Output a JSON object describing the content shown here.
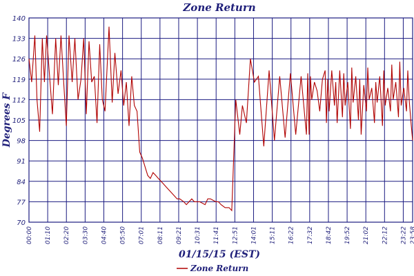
{
  "chart_data": {
    "type": "line",
    "title": "Zone Return",
    "xlabel": "01/15/15 (EST)",
    "ylabel": "Degrees F",
    "ylim": [
      70,
      140
    ],
    "yticks": [
      70,
      77,
      84,
      91,
      98,
      105,
      112,
      119,
      126,
      133,
      140
    ],
    "xticks": [
      "00:00",
      "01:10",
      "02:20",
      "03:30",
      "04:40",
      "05:50",
      "07:01",
      "08:11",
      "09:21",
      "10:31",
      "11:41",
      "12:51",
      "14:01",
      "15:11",
      "16:22",
      "17:32",
      "18:42",
      "19:52",
      "21:02",
      "22:12",
      "23:22",
      "23:58"
    ],
    "xlim_minutes": [
      0,
      1438
    ],
    "grid": true,
    "legend": {
      "position": "bottom-center"
    },
    "colors": {
      "series": "#b00000",
      "grid": "#1a1a80",
      "axis_text": "#1f1f7a"
    },
    "series": [
      {
        "name": "Zone Return",
        "x_minutes": [
          0,
          10,
          22,
          30,
          40,
          50,
          58,
          66,
          78,
          88,
          100,
          110,
          120,
          130,
          140,
          150,
          162,
          172,
          184,
          195,
          205,
          215,
          225,
          235,
          245,
          255,
          265,
          275,
          285,
          300,
          312,
          322,
          334,
          345,
          355,
          365,
          375,
          385,
          395,
          405,
          415,
          425,
          435,
          445,
          455,
          465,
          475,
          485,
          495,
          505,
          515,
          525,
          535,
          545,
          555,
          565,
          580,
          590,
          600,
          610,
          620,
          630,
          640,
          660,
          670,
          680,
          700,
          710,
          720,
          735,
          750,
          760,
          775,
          790,
          800,
          815,
          830,
          845,
          860,
          880,
          900,
          920,
          940,
          960,
          980,
          1000,
          1020,
          1040,
          1045,
          1050,
          1055,
          1060,
          1070,
          1080,
          1090,
          1100,
          1110,
          1115,
          1120,
          1125,
          1135,
          1145,
          1150,
          1155,
          1165,
          1175,
          1180,
          1185,
          1195,
          1205,
          1210,
          1215,
          1225,
          1235,
          1240,
          1245,
          1255,
          1265,
          1270,
          1275,
          1285,
          1295,
          1300,
          1305,
          1315,
          1325,
          1330,
          1335,
          1345,
          1355,
          1360,
          1365,
          1375,
          1385,
          1390,
          1395,
          1405,
          1415,
          1420,
          1425,
          1432,
          1438
        ],
        "values": [
          126,
          118,
          134,
          112,
          101,
          133,
          118,
          134,
          119,
          107,
          133,
          117,
          134,
          118,
          103,
          134,
          118,
          133,
          112,
          119,
          133,
          107,
          132,
          118,
          120,
          104,
          131,
          112,
          108,
          137,
          111,
          128,
          114,
          122,
          110,
          118,
          103,
          120,
          110,
          108,
          94,
          92,
          89,
          86,
          85,
          87,
          86,
          85,
          84,
          83,
          82,
          81,
          80,
          79,
          78,
          78,
          77,
          76,
          77,
          78,
          77,
          77,
          77,
          76,
          78,
          78,
          77,
          77,
          76,
          75,
          75,
          74,
          112,
          100,
          110,
          104,
          126,
          118,
          120,
          96,
          122,
          98,
          120,
          99,
          121,
          100,
          120,
          100,
          121,
          100,
          120,
          112,
          118,
          115,
          108,
          119,
          122,
          104,
          119,
          108,
          122,
          110,
          118,
          104,
          122,
          106,
          121,
          110,
          118,
          102,
          123,
          111,
          120,
          105,
          119,
          100,
          117,
          108,
          123,
          112,
          116,
          104,
          118,
          111,
          120,
          103,
          122,
          110,
          116,
          108,
          124,
          112,
          118,
          106,
          125,
          110,
          116,
          108,
          122,
          112,
          104,
          98
        ]
      }
    ]
  }
}
